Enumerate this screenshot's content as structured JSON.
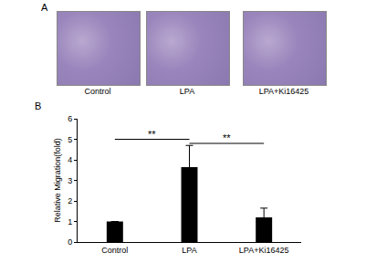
{
  "panel_a": {
    "label": "A",
    "captions": [
      "Control",
      "LPA",
      "LPA+Ki16425"
    ]
  },
  "panel_b_label": "B",
  "chart_data": {
    "type": "bar",
    "y_label": "Relative Migration(fold)",
    "categories": [
      "Control",
      "LPA",
      "LPA+Ki16425"
    ],
    "values": [
      1.0,
      3.65,
      1.2
    ],
    "errors": [
      0,
      1.05,
      0.45
    ],
    "color": "#000000",
    "ylim": [
      0,
      6
    ],
    "yticks": [
      0,
      1,
      2,
      3,
      4,
      5,
      6
    ],
    "grid": false,
    "annotations": [
      {
        "from": "Control",
        "to": "LPA",
        "y": 5.0,
        "label": "**"
      },
      {
        "from": "LPA",
        "to": "LPA+Ki16425",
        "y": 4.8,
        "label": "**"
      }
    ]
  }
}
